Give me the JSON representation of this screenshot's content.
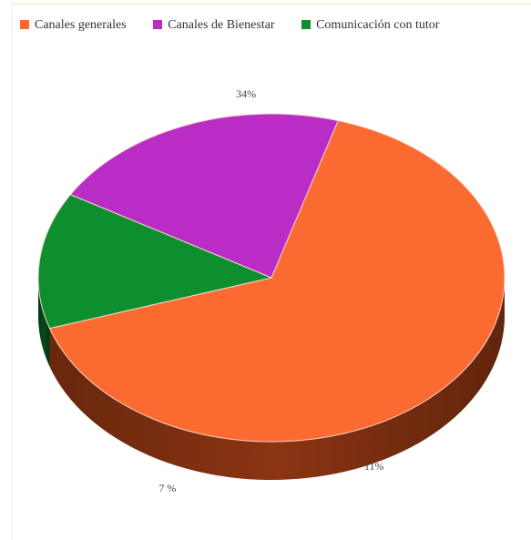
{
  "chart_data": {
    "type": "pie",
    "style": "3d",
    "legend_position": "top",
    "title": "",
    "slices": [
      {
        "name": "Canales generales",
        "value": 34,
        "label": "34%",
        "color": "#fb6a31",
        "side_color": "#8b3412"
      },
      {
        "name": "Canales de Bienestar",
        "value": 11,
        "label": "11%",
        "color": "#b92dc6",
        "side_color": "#5e0f66"
      },
      {
        "name": "Comunicación con tutor",
        "value": 7,
        "label": "7 %",
        "color": "#0d8f2f",
        "side_color": "#064a17"
      }
    ]
  }
}
